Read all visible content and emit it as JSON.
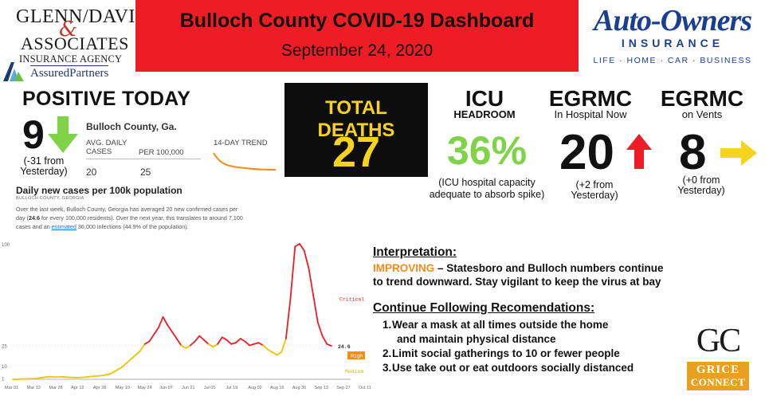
{
  "header": {
    "title": "Bulloch County COVID-19 Dashboard",
    "date": "September 24, 2020"
  },
  "sponsor_left": {
    "line1": "GLENN/DAVIS",
    "amp": "&",
    "line2": "ASSOCIATES",
    "line3": "INSURANCE AGENCY",
    "partner": "AssuredPartners"
  },
  "sponsor_right": {
    "name": "Auto-Owners",
    "insurance": "INSURANCE",
    "tagline": "LIFE · HOME · CAR · BUSINESS"
  },
  "positive_today": {
    "label": "POSITIVE TODAY",
    "value": "9",
    "note": "(-31 from Yesterday)",
    "arrow_icon": "down-arrow-icon",
    "arrow_color": "#7ed348"
  },
  "county_panel": {
    "name": "Bulloch County, Ga.",
    "col1_header": "AVG. DAILY CASES",
    "col2_header": "PER 100,000",
    "col1_value": "20",
    "col2_value": "25",
    "trend_label": "14-DAY TREND",
    "daily_title": "Daily new cases per 100k population",
    "daily_sub": "BULLOCH COUNTY, GEORGIA",
    "desc_part1": "Over the last week, Bulloch County, Georgia has averaged 20 new confirmed cases per day (",
    "desc_bold": "24.6",
    "desc_part2": " for every 100,000 residents). Over the next year, this translates to around 7,100 cases and an ",
    "desc_link": "estimated",
    "desc_part3": " 36,000 infections (44.9% of the population)."
  },
  "total_deaths": {
    "label": "TOTAL DEATHS",
    "value": "27",
    "color": "#f7d21f"
  },
  "icu": {
    "title": "ICU",
    "sub": "HEADROOM",
    "value": "36%",
    "note": "(ICU hospital capacity adequate to absorb spike)",
    "color": "#7ed348"
  },
  "egrmc_hospital": {
    "title": "EGRMC",
    "sub": "In Hospital Now",
    "value": "20",
    "note": "(+2 from Yesterday)",
    "arrow_icon": "up-arrow-icon",
    "arrow_color": "#ee1c24"
  },
  "egrmc_vents": {
    "title": "EGRMC",
    "sub": "on Vents",
    "value": "8",
    "note": "(+0 from Yesterday)",
    "arrow_icon": "right-arrow-icon",
    "arrow_color": "#f7d21f"
  },
  "interpretation": {
    "title": "Interpretation:",
    "status": "IMPROVING",
    "line1_rest": " – Statesboro and Bulloch numbers continue",
    "line2": "to trend downward.  Stay vigilant to keep the virus at bay"
  },
  "recommendations": {
    "title": "Continue Following Recomendations:",
    "items": [
      {
        "num": "1.",
        "text": "Wear a mask at all times outside the home"
      },
      {
        "num": "",
        "text": "and maintain physical distance"
      },
      {
        "num": "2.",
        "text": "Limit social gatherings to 10 or fewer people"
      },
      {
        "num": "3.",
        "text": "Use take out or eat outdoors socially distanced"
      }
    ]
  },
  "grice_logo": {
    "letters": "GC",
    "word1": "GRICE",
    "word2": "CONNECT"
  },
  "chart_data": {
    "type": "line",
    "title": "Daily new cases per 100k population",
    "xlabel": "",
    "ylabel": "",
    "ylim": [
      0,
      100
    ],
    "y_ticks": [
      "100",
      "25",
      "10",
      "1"
    ],
    "x_ticks": [
      "Mar 01",
      "Mar 13",
      "Mar 28",
      "Apr 12",
      "Apr 28",
      "May 10",
      "May 24",
      "Jun 07",
      "Jun 21",
      "Jul 05",
      "Jul 19",
      "Aug 02",
      "Aug 16",
      "Aug 30",
      "Sep 13",
      "Sep 27",
      "Oct 11"
    ],
    "threshold_labels": {
      "critical": "Critical",
      "high": "High",
      "medium": "Medium"
    },
    "last_value_label": "24.6",
    "series": [
      {
        "values": [
          0,
          0,
          0.2,
          0.3,
          0.4,
          0.5,
          1,
          1.5,
          2,
          1.6,
          1.7,
          1.8,
          1.5,
          1.4,
          1.2,
          1.4,
          1.6,
          2,
          2.3,
          2.5,
          3,
          3.5,
          5,
          7,
          9,
          12,
          15,
          18,
          21,
          26,
          28,
          33,
          38,
          46,
          40,
          35,
          30,
          25,
          23,
          25,
          28,
          32,
          29,
          26,
          24,
          26,
          31,
          29,
          26,
          27,
          30,
          28,
          25,
          26,
          27,
          25,
          22,
          20,
          18,
          20,
          30,
          60,
          98,
          100,
          95,
          82,
          62,
          42,
          32,
          26,
          24.6
        ],
        "colors": [
          "#f2c200",
          "#ee1c24"
        ],
        "color_threshold": 25
      }
    ]
  }
}
